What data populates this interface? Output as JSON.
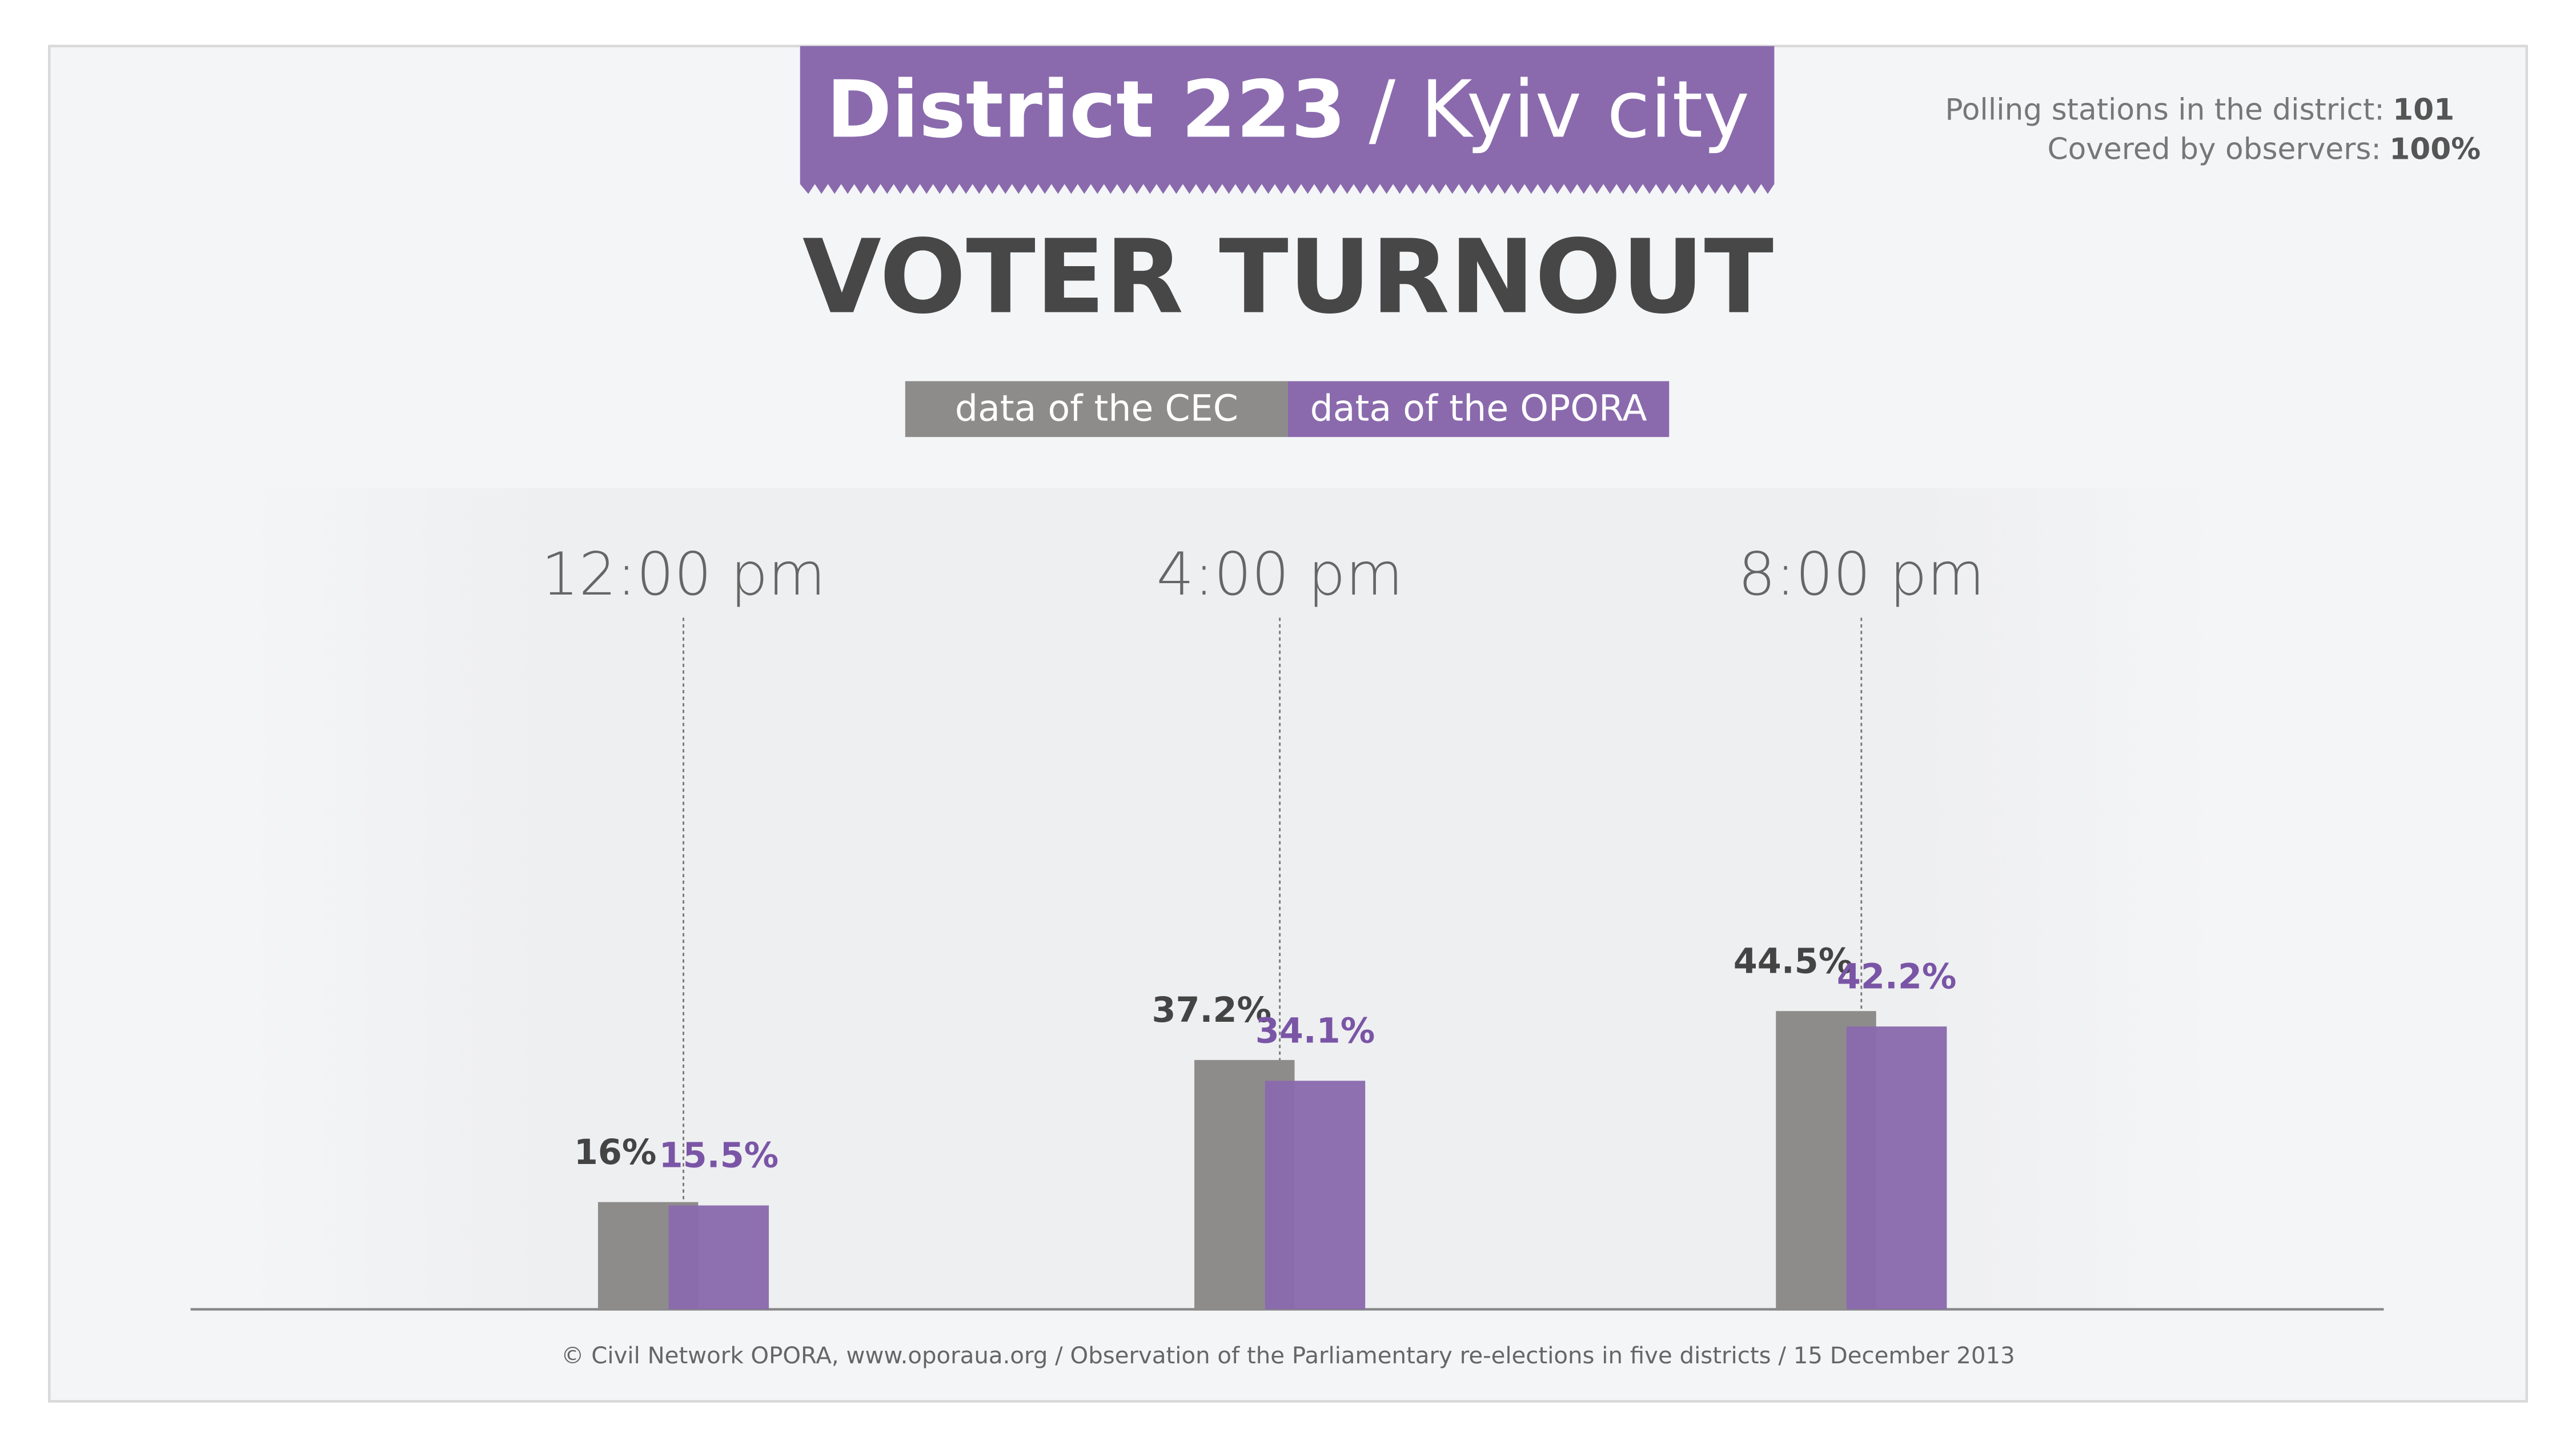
{
  "header": {
    "district": "District 223",
    "city": "/ Kyiv city"
  },
  "info": {
    "stations_label": "Polling stations in the district:",
    "stations_value": "101",
    "coverage_label": "Covered by observers:",
    "coverage_value": "100%"
  },
  "chart_data": {
    "type": "bar",
    "title": "VOTER TURNOUT",
    "categories": [
      "12:00 pm",
      "4:00 pm",
      "8:00 pm"
    ],
    "series": [
      {
        "name": "data of the CEC",
        "color": "#8e8c8a",
        "values": [
          16,
          37.2,
          44.5
        ],
        "value_labels": [
          "16%",
          "37.2%",
          "44.5%"
        ]
      },
      {
        "name": "data of the OPORA",
        "color": "#8a6aad",
        "values": [
          15.5,
          34.1,
          42.2
        ],
        "value_labels": [
          "15.5%",
          "34.1%",
          "42.2%"
        ]
      }
    ]
  },
  "footer": "© Civil Network OPORA, www.oporaua.org / Observation of the Parliamentary re-elections  in five districts / 15 December 2013"
}
